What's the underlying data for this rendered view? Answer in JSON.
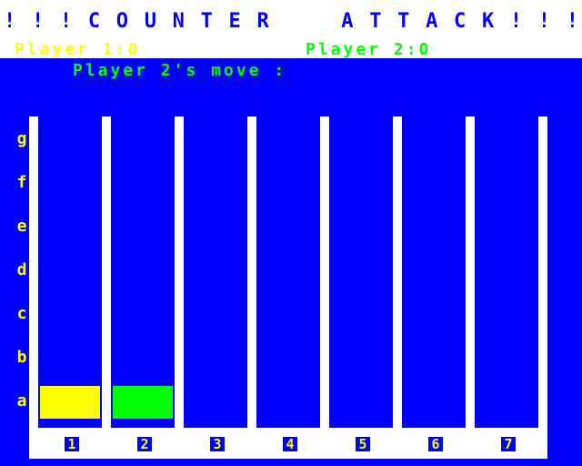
{
  "title_chars": [
    "!",
    "!",
    "!",
    "C",
    "O",
    "U",
    "N",
    "T",
    "E",
    "R",
    " ",
    " ",
    "A",
    "T",
    "T",
    "A",
    "C",
    "K",
    "!",
    "!",
    "!"
  ],
  "player1_score": "Player 1:0",
  "player2_score": "Player 2:0",
  "status": "Player 2's move :",
  "row_labels": [
    "g",
    "f",
    "e",
    "d",
    "c",
    "b",
    "a"
  ],
  "column_labels": [
    "1",
    "2",
    "3",
    "4",
    "5",
    "6",
    "7"
  ],
  "pieces": [
    {
      "column": 1,
      "row": "a",
      "player": 1
    },
    {
      "column": 2,
      "row": "a",
      "player": 2
    }
  ],
  "colors": {
    "background": "#0000FF",
    "board": "#FFFFFF",
    "player1": "#FFFF00",
    "player2": "#00FF00"
  }
}
